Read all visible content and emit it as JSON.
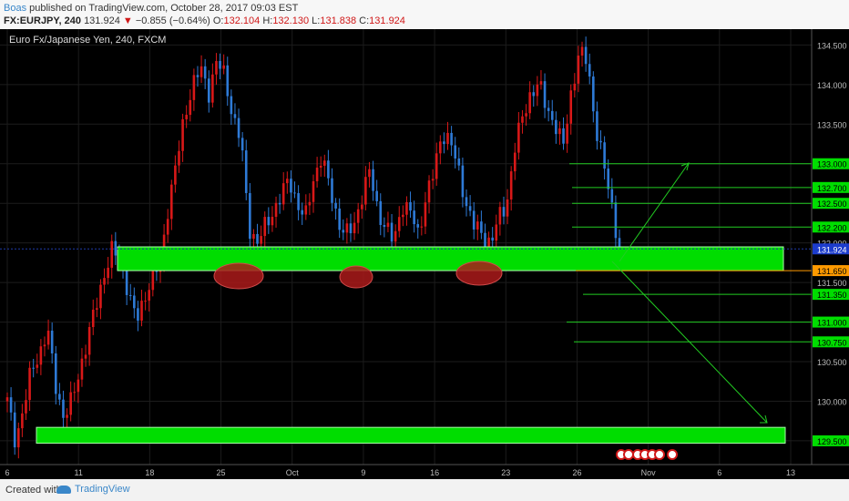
{
  "header": {
    "author": "Boas",
    "published_text": " published on TradingView.com, October 28, 2017 09:03 EST",
    "symbol": "FX:EURJPY",
    "interval": ", 240",
    "last": "131.924",
    "arrow": "▼",
    "change": "−0.855 (−0.64%)",
    "open_label": "O:",
    "open": "132.104",
    "high_label": "H:",
    "high": "132.130",
    "low_label": "L:",
    "low": "131.838",
    "close_label": "C:",
    "close": "131.924"
  },
  "chart_title": "Euro Fx/Japanese Yen, 240, FXCM",
  "footer": {
    "created_with": "Created with",
    "brand": "TradingView"
  },
  "colors": {
    "up": "#d81818",
    "down": "#2e7ad6",
    "zone": "#00dd00",
    "line": "#22cc22",
    "ellipse": "#aa1a1a",
    "orange_label": "#ff9a00"
  },
  "chart_data": {
    "type": "candlestick",
    "ylim": [
      129.2,
      134.7
    ],
    "y_ticks": [
      "134.500",
      "134.000",
      "133.500",
      "133.000",
      "132.500",
      "132.000",
      "131.500",
      "131.000",
      "130.500",
      "130.000",
      "129.500"
    ],
    "x_ticks": [
      "6",
      "11",
      "18",
      "25",
      "Oct",
      "9",
      "16",
      "23",
      "26",
      "Nov",
      "6",
      "13"
    ],
    "price_labels": [
      {
        "value": 133.0,
        "label": "133.000",
        "color": "green"
      },
      {
        "value": 132.7,
        "label": "132.700",
        "color": "green"
      },
      {
        "value": 132.5,
        "label": "132.500",
        "color": "green"
      },
      {
        "value": 132.2,
        "label": "132.200",
        "color": "green"
      },
      {
        "value": 131.924,
        "label": "131.924",
        "color": "blue"
      },
      {
        "value": 131.65,
        "label": "131.650",
        "color": "orange"
      },
      {
        "value": 131.35,
        "label": "131.350",
        "color": "green"
      },
      {
        "value": 131.0,
        "label": "131.000",
        "color": "green"
      },
      {
        "value": 130.75,
        "label": "130.750",
        "color": "green"
      },
      {
        "value": 129.5,
        "label": "129.500",
        "color": "green"
      }
    ],
    "support_zones": [
      {
        "from": 131.65,
        "to": 131.95
      },
      {
        "from": 129.47,
        "to": 129.67
      }
    ],
    "price_path": [
      130.0,
      129.5,
      129.9,
      130.4,
      130.6,
      130.9,
      130.2,
      129.8,
      130.0,
      130.4,
      130.8,
      131.2,
      131.6,
      131.9,
      131.8,
      131.4,
      131.0,
      131.3,
      131.6,
      131.7,
      132.5,
      133.0,
      133.6,
      134.0,
      134.2,
      133.9,
      134.3,
      134.1,
      133.6,
      133.3,
      132.2,
      132.0,
      132.2,
      132.4,
      132.6,
      132.8,
      132.5,
      132.3,
      132.8,
      133.1,
      132.7,
      132.3,
      132.1,
      132.2,
      132.6,
      132.9,
      132.4,
      132.2,
      132.0,
      132.5,
      132.4,
      132.1,
      132.6,
      132.9,
      133.4,
      133.3,
      132.9,
      132.5,
      132.2,
      132.1,
      132.0,
      132.3,
      132.5,
      133.2,
      133.6,
      133.9,
      134.0,
      133.7,
      133.5,
      133.2,
      133.9,
      134.4,
      134.3,
      133.5,
      133.0,
      132.5,
      131.92
    ]
  }
}
